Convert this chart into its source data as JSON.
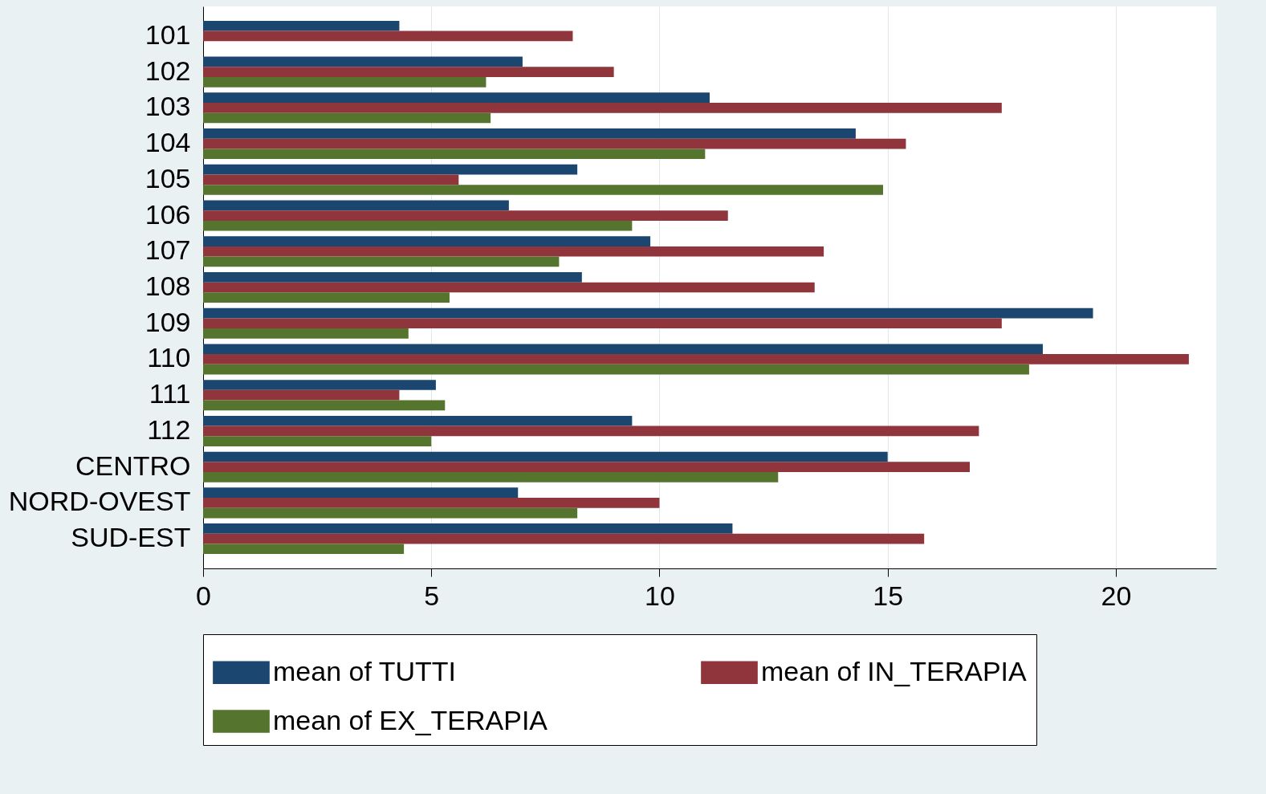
{
  "chart_data": {
    "type": "bar",
    "orientation": "horizontal",
    "categories": [
      "101",
      "102",
      "103",
      "104",
      "105",
      "106",
      "107",
      "108",
      "109",
      "110",
      "111",
      "112",
      "CENTRO",
      "NORD-OVEST",
      "SUD-EST"
    ],
    "series": [
      {
        "name": "mean of TUTTI",
        "color": "#1a4670",
        "values": [
          4.3,
          7.0,
          11.1,
          14.3,
          8.2,
          6.7,
          9.8,
          8.3,
          19.5,
          18.4,
          5.1,
          9.4,
          15.0,
          6.9,
          11.6
        ]
      },
      {
        "name": "mean of IN_TERAPIA",
        "color": "#90353b",
        "values": [
          8.1,
          9.0,
          17.5,
          15.4,
          5.6,
          11.5,
          13.6,
          13.4,
          17.5,
          21.6,
          4.3,
          17.0,
          16.8,
          10.0,
          15.8
        ]
      },
      {
        "name": "mean of EX_TERAPIA",
        "color": "#55752f",
        "values": [
          null,
          6.2,
          6.3,
          11.0,
          14.9,
          9.4,
          7.8,
          5.4,
          4.5,
          18.1,
          5.3,
          5.0,
          12.6,
          8.2,
          4.4
        ]
      }
    ],
    "xlim": [
      0,
      22.2
    ],
    "xticks": [
      0,
      5,
      10,
      15,
      20
    ],
    "grid": "x",
    "legend": "bottom"
  }
}
